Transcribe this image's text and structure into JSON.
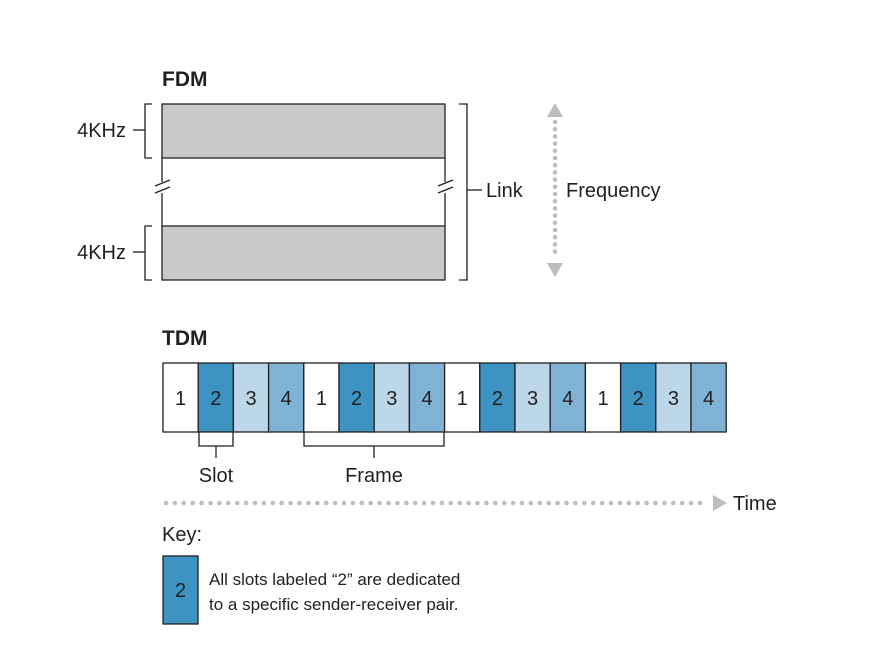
{
  "fdm": {
    "title": "FDM",
    "band_labels": [
      "4KHz",
      "4KHz"
    ],
    "link_label": "Link",
    "frequency_label": "Frequency"
  },
  "tdm": {
    "title": "TDM",
    "slots": [
      "1",
      "2",
      "3",
      "4",
      "1",
      "2",
      "3",
      "4",
      "1",
      "2",
      "3",
      "4",
      "1",
      "2",
      "3",
      "4"
    ],
    "slot_label": "Slot",
    "frame_label": "Frame",
    "time_label": "Time"
  },
  "key": {
    "title": "Key:",
    "swatch_label": "2",
    "line1": "All slots labeled “2” are dedicated",
    "line2": "to a specific sender-receiver pair."
  },
  "colors": {
    "band_fill": "#c8c9cb",
    "slot_1": "#ffffff",
    "slot_2": "#3d93c2",
    "slot_3": "#bcd7ea",
    "slot_4": "#7fb3d6",
    "dots": "#bdbdbd",
    "stroke": "#231f20"
  }
}
